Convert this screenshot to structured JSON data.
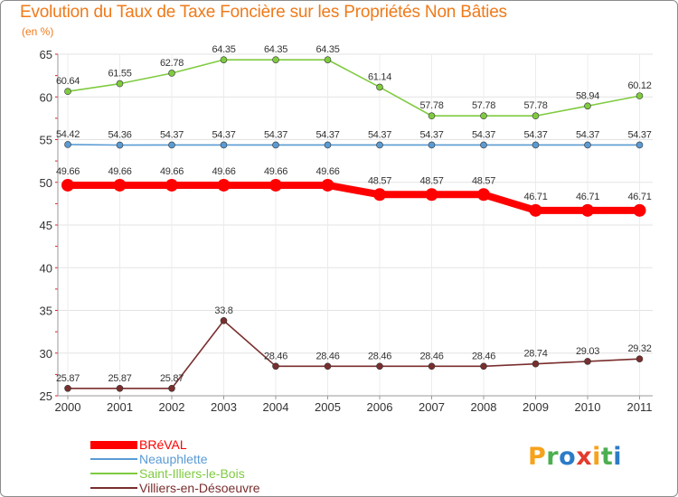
{
  "chart_data": {
    "type": "line",
    "title": "Evolution du Taux de Taxe Foncière sur les Propriétés Non Bâties",
    "subtitle": "(en %)",
    "xlabel": "",
    "ylabel": "",
    "ylim": [
      25,
      65
    ],
    "yticks": [
      25,
      30,
      35,
      40,
      45,
      50,
      55,
      60,
      65
    ],
    "grid": true,
    "legend_position": "bottom-left",
    "categories": [
      "2000",
      "2001",
      "2002",
      "2003",
      "2004",
      "2005",
      "2006",
      "2007",
      "2008",
      "2009",
      "2010",
      "2011"
    ],
    "series": [
      {
        "name": "Saint-Illiers-le-Bois",
        "color": "#7fcb3f",
        "values": [
          60.64,
          61.55,
          62.78,
          64.35,
          64.35,
          64.35,
          61.14,
          57.78,
          57.78,
          57.78,
          58.94,
          60.12
        ],
        "labels": [
          "60.64",
          "61.55",
          "62.78",
          "64.35",
          "64.35",
          "64.35",
          "61.14",
          "57.78",
          "57.78",
          "57.78",
          "58.94",
          "60.12"
        ]
      },
      {
        "name": "Neauphlette",
        "color": "#5a9bd4",
        "values": [
          54.42,
          54.36,
          54.37,
          54.37,
          54.37,
          54.37,
          54.37,
          54.37,
          54.37,
          54.37,
          54.37,
          54.37
        ],
        "labels": [
          "54.42",
          "54.36",
          "54.37",
          "54.37",
          "54.37",
          "54.37",
          "54.37",
          "54.37",
          "54.37",
          "54.37",
          "54.37",
          "54.37"
        ]
      },
      {
        "name": "BRéVAL",
        "color": "#ff0000",
        "values": [
          49.66,
          49.66,
          49.66,
          49.66,
          49.66,
          49.66,
          48.57,
          48.57,
          48.57,
          46.71,
          46.71,
          46.71
        ],
        "labels": [
          "49.66",
          "49.66",
          "49.66",
          "49.66",
          "49.66",
          "49.66",
          "48.57",
          "48.57",
          "48.57",
          "46.71",
          "46.71",
          "46.71"
        ]
      },
      {
        "name": "Villiers-en-Désoeuvre",
        "color": "#7a2e2e",
        "values": [
          25.87,
          25.87,
          25.87,
          33.8,
          28.46,
          28.46,
          28.46,
          28.46,
          28.46,
          28.74,
          29.03,
          29.32
        ],
        "labels": [
          "25.87",
          "25.87",
          "25.87",
          "33.8",
          "28.46",
          "28.46",
          "28.46",
          "28.46",
          "28.46",
          "28.74",
          "29.03",
          "29.32"
        ]
      }
    ]
  },
  "legend": [
    {
      "label": "BRéVAL",
      "color": "#ff0000",
      "thick": true
    },
    {
      "label": "Neauphlette",
      "color": "#5a9bd4",
      "thick": false
    },
    {
      "label": "Saint-Illiers-le-Bois",
      "color": "#7fcb3f",
      "thick": false
    },
    {
      "label": "Villiers-en-Désoeuvre",
      "color": "#7a2e2e",
      "thick": false
    }
  ],
  "logo": {
    "letters": [
      "P",
      "r",
      "o",
      "x",
      "i",
      "t",
      "i"
    ],
    "colors": [
      "#f7a21b",
      "#4caf50",
      "#2c7bc8",
      "#e33b2e",
      "#f7a21b",
      "#4caf50",
      "#2c7bc8"
    ]
  }
}
